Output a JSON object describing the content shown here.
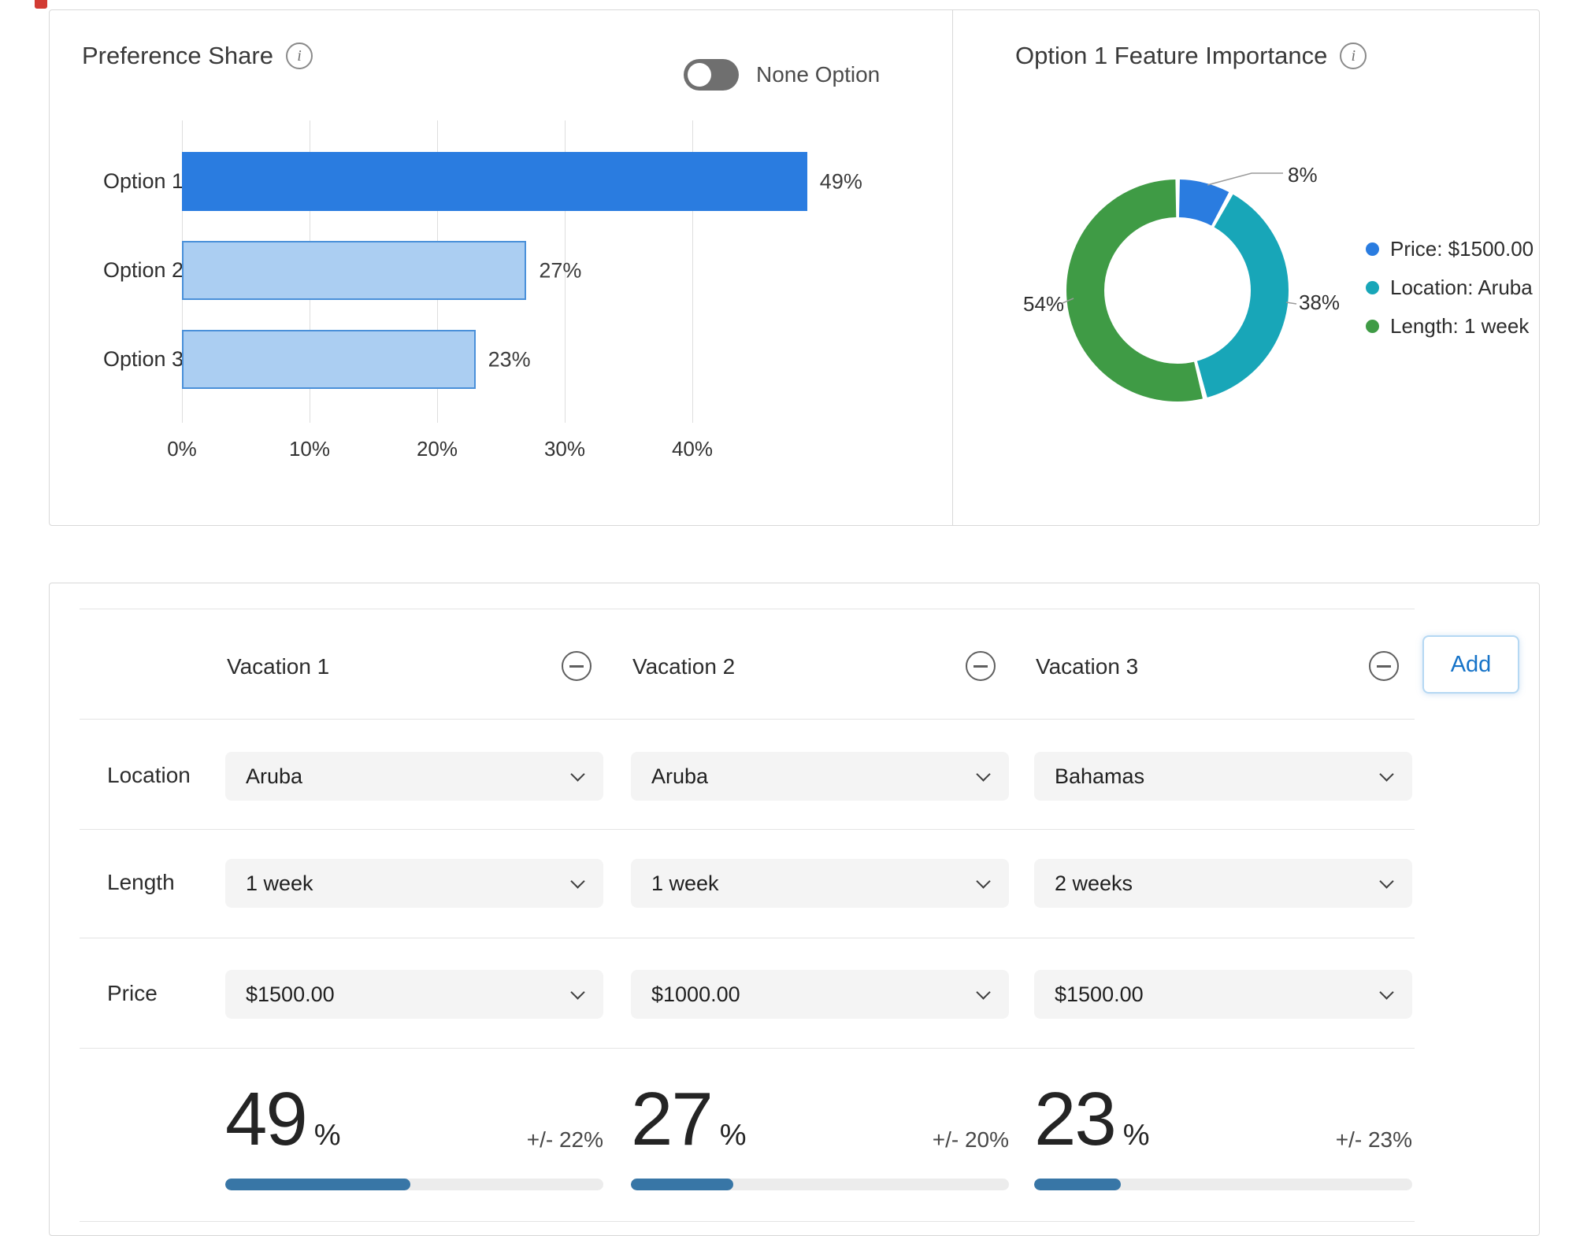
{
  "icons": {
    "info": "i"
  },
  "preference_share": {
    "title": "Preference Share",
    "toggle_label": "None Option",
    "none_option_enabled": false,
    "chart_data": {
      "type": "bar",
      "orientation": "horizontal",
      "categories": [
        "Option 1",
        "Option 2",
        "Option 3"
      ],
      "values": [
        49,
        27,
        23
      ],
      "value_labels": [
        "49%",
        "27%",
        "23%"
      ],
      "x_ticks": [
        "0%",
        "10%",
        "20%",
        "30%",
        "40%"
      ],
      "x_tick_values": [
        0,
        10,
        20,
        30,
        40
      ],
      "xlim": [
        0,
        52
      ],
      "grid": true
    }
  },
  "feature_importance": {
    "title": "Option 1 Feature Importance",
    "chart_data": {
      "type": "donut",
      "legend_position": "right",
      "slices": [
        {
          "label": "Price: $1500.00",
          "value": 8,
          "display": "8%",
          "color": "#2a7ce0"
        },
        {
          "label": "Location: Aruba",
          "value": 38,
          "display": "38%",
          "color": "#18a6b8"
        },
        {
          "label": "Length: 1 week",
          "value": 54,
          "display": "54%",
          "color": "#3f9b45"
        }
      ]
    }
  },
  "simulator": {
    "row_labels": {
      "location": "Location",
      "length": "Length",
      "price": "Price"
    },
    "add_button": "Add",
    "columns": [
      {
        "name": "Vacation 1",
        "location": "Aruba",
        "length": "1 week",
        "price": "$1500.00",
        "share": 49,
        "share_display": "49",
        "share_unit": "%",
        "margin": "+/- 22%"
      },
      {
        "name": "Vacation 2",
        "location": "Aruba",
        "length": "1 week",
        "price": "$1000.00",
        "share": 27,
        "share_display": "27",
        "share_unit": "%",
        "margin": "+/- 20%"
      },
      {
        "name": "Vacation 3",
        "location": "Bahamas",
        "length": "2 weeks",
        "price": "$1500.00",
        "share": 23,
        "share_display": "23",
        "share_unit": "%",
        "margin": "+/- 23%"
      }
    ]
  },
  "colors": {
    "bar_primary": "#2a7ce0",
    "bar_light_fill": "#abcef2",
    "bar_light_border": "#4a90d9",
    "progress_fill": "#3876a6",
    "progress_track": "#ececec"
  }
}
